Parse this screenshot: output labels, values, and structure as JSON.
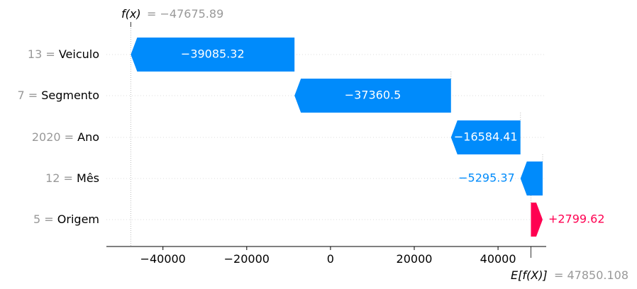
{
  "chart_data": {
    "type": "waterfall",
    "title": "",
    "xlim": [
      -53500,
      51500
    ],
    "x_ticks": [
      -40000,
      -20000,
      0,
      20000,
      40000
    ],
    "x_tick_labels": [
      "−40000",
      "−20000",
      "0",
      "20000",
      "40000"
    ],
    "fx": {
      "label": "f(x)",
      "value_text": "= −47675.89",
      "value": -47675.89
    },
    "efx": {
      "label": "E[f(X)]",
      "value_text": "= 47850.108",
      "value": 47850.108
    },
    "features": [
      {
        "value": "13",
        "name": "Veiculo",
        "contribution": -39085.32,
        "label": "−39085.32",
        "start": -8590.57,
        "end": -47675.89,
        "label_inside": true
      },
      {
        "value": "7",
        "name": "Segmento",
        "contribution": -37360.5,
        "label": "−37360.5",
        "start": 28769.93,
        "end": -8590.57,
        "label_inside": true
      },
      {
        "value": "2020",
        "name": "Ano",
        "contribution": -16584.41,
        "label": "−16584.41",
        "start": 45354.34,
        "end": 28769.93,
        "label_inside": true
      },
      {
        "value": "12",
        "name": "Mês",
        "contribution": -5295.37,
        "label": "−5295.37",
        "start": 50649.71,
        "end": 45354.34,
        "label_inside": false
      },
      {
        "value": "5",
        "name": "Origem",
        "contribution": 2799.62,
        "label": "+2799.62",
        "start": 47850.108,
        "end": 50649.73,
        "label_inside": false
      }
    ],
    "colors": {
      "negative": "#008bfb",
      "positive": "#ff0051",
      "muted": "#999999",
      "grid": "#dddddd"
    },
    "grid": true
  }
}
